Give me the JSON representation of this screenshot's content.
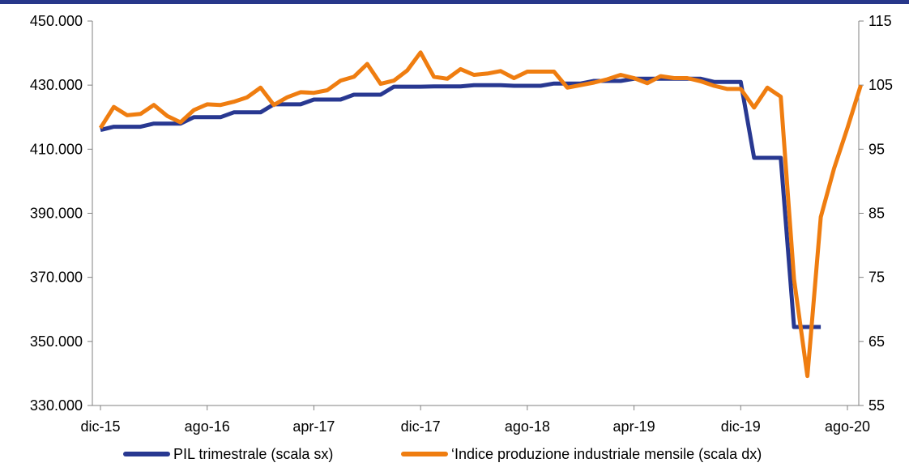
{
  "chart_data": {
    "type": "line",
    "title": "",
    "x_tick_labels": [
      "dic-15",
      "ago-16",
      "apr-17",
      "dic-17",
      "ago-18",
      "apr-19",
      "dic-19",
      "ago-20"
    ],
    "y_left": {
      "ylim": [
        330000,
        450000
      ],
      "ticks": [
        330000,
        350000,
        370000,
        390000,
        410000,
        430000,
        450000
      ],
      "tick_labels": [
        "330.000",
        "350.000",
        "370.000",
        "390.000",
        "410.000",
        "430.000",
        "450.000"
      ]
    },
    "y_right": {
      "ylim": [
        55,
        115
      ],
      "ticks": [
        55,
        65,
        75,
        85,
        95,
        105,
        115
      ],
      "tick_labels": [
        "55",
        "65",
        "75",
        "85",
        "95",
        "105",
        "115"
      ]
    },
    "x_range": [
      "2015-12",
      "2020-08"
    ],
    "grid": false,
    "legend_position": "bottom",
    "series": [
      {
        "name": "PIL trimestrale (scala sx)",
        "axis": "left",
        "color": "#283891",
        "points": [
          [
            "2015-12",
            416000
          ],
          [
            "2016-01",
            417000
          ],
          [
            "2016-02",
            417000
          ],
          [
            "2016-03",
            417000
          ],
          [
            "2016-04",
            418000
          ],
          [
            "2016-05",
            418000
          ],
          [
            "2016-06",
            418000
          ],
          [
            "2016-07",
            420000
          ],
          [
            "2016-08",
            420000
          ],
          [
            "2016-09",
            420000
          ],
          [
            "2016-10",
            421500
          ],
          [
            "2016-11",
            421500
          ],
          [
            "2016-12",
            421500
          ],
          [
            "2017-01",
            424000
          ],
          [
            "2017-02",
            424000
          ],
          [
            "2017-03",
            424000
          ],
          [
            "2017-04",
            425500
          ],
          [
            "2017-05",
            425500
          ],
          [
            "2017-06",
            425500
          ],
          [
            "2017-07",
            427000
          ],
          [
            "2017-08",
            427000
          ],
          [
            "2017-09",
            427000
          ],
          [
            "2017-10",
            429500
          ],
          [
            "2017-11",
            429500
          ],
          [
            "2017-12",
            429500
          ],
          [
            "2018-01",
            429600
          ],
          [
            "2018-02",
            429600
          ],
          [
            "2018-03",
            429600
          ],
          [
            "2018-04",
            430000
          ],
          [
            "2018-05",
            430000
          ],
          [
            "2018-06",
            430000
          ],
          [
            "2018-07",
            429800
          ],
          [
            "2018-08",
            429800
          ],
          [
            "2018-09",
            429800
          ],
          [
            "2018-10",
            430500
          ],
          [
            "2018-11",
            430500
          ],
          [
            "2018-12",
            430500
          ],
          [
            "2019-01",
            431300
          ],
          [
            "2019-02",
            431300
          ],
          [
            "2019-03",
            431300
          ],
          [
            "2019-04",
            432000
          ],
          [
            "2019-05",
            432000
          ],
          [
            "2019-06",
            432000
          ],
          [
            "2019-07",
            432000
          ],
          [
            "2019-08",
            432000
          ],
          [
            "2019-09",
            432000
          ],
          [
            "2019-10",
            431000
          ],
          [
            "2019-11",
            431000
          ],
          [
            "2019-12",
            431000
          ],
          [
            "2020-01",
            407300
          ],
          [
            "2020-02",
            407300
          ],
          [
            "2020-03",
            407300
          ],
          [
            "2020-04",
            354500
          ],
          [
            "2020-05",
            354500
          ],
          [
            "2020-06",
            354500
          ]
        ]
      },
      {
        "name": "‘Indice produzione industriale mensile (scala dx)",
        "axis": "right",
        "color": "#ef7d10",
        "points": [
          [
            "2015-12",
            98.3
          ],
          [
            "2016-01",
            101.6
          ],
          [
            "2016-02",
            100.3
          ],
          [
            "2016-03",
            100.5
          ],
          [
            "2016-04",
            101.9
          ],
          [
            "2016-05",
            100.2
          ],
          [
            "2016-06",
            99.2
          ],
          [
            "2016-07",
            101.1
          ],
          [
            "2016-08",
            102.0
          ],
          [
            "2016-09",
            101.9
          ],
          [
            "2016-10",
            102.4
          ],
          [
            "2016-11",
            103.1
          ],
          [
            "2016-12",
            104.6
          ],
          [
            "2017-01",
            101.9
          ],
          [
            "2017-02",
            103.1
          ],
          [
            "2017-03",
            103.9
          ],
          [
            "2017-04",
            103.8
          ],
          [
            "2017-05",
            104.2
          ],
          [
            "2017-06",
            105.7
          ],
          [
            "2017-07",
            106.3
          ],
          [
            "2017-08",
            108.3
          ],
          [
            "2017-09",
            105.2
          ],
          [
            "2017-10",
            105.7
          ],
          [
            "2017-11",
            107.3
          ],
          [
            "2017-12",
            110.1
          ],
          [
            "2018-01",
            106.3
          ],
          [
            "2018-02",
            106.0
          ],
          [
            "2018-03",
            107.5
          ],
          [
            "2018-04",
            106.6
          ],
          [
            "2018-05",
            106.8
          ],
          [
            "2018-06",
            107.2
          ],
          [
            "2018-07",
            106.1
          ],
          [
            "2018-08",
            107.1
          ],
          [
            "2018-09",
            107.1
          ],
          [
            "2018-10",
            107.1
          ],
          [
            "2018-11",
            104.6
          ],
          [
            "2018-12",
            105.0
          ],
          [
            "2019-01",
            105.4
          ],
          [
            "2019-02",
            105.9
          ],
          [
            "2019-03",
            106.6
          ],
          [
            "2019-04",
            106.1
          ],
          [
            "2019-05",
            105.3
          ],
          [
            "2019-06",
            106.4
          ],
          [
            "2019-07",
            106.1
          ],
          [
            "2019-08",
            106.1
          ],
          [
            "2019-09",
            105.6
          ],
          [
            "2019-10",
            104.9
          ],
          [
            "2019-11",
            104.4
          ],
          [
            "2019-12",
            104.4
          ],
          [
            "2020-01",
            101.5
          ],
          [
            "2020-02",
            104.6
          ],
          [
            "2020-03",
            103.2
          ],
          [
            "2020-04",
            74.7
          ],
          [
            "2020-05",
            59.6
          ],
          [
            "2020-06",
            84.4
          ],
          [
            "2020-07",
            92.0
          ],
          [
            "2020-08",
            98.3
          ],
          [
            "2020-09",
            105.0
          ]
        ]
      }
    ]
  }
}
